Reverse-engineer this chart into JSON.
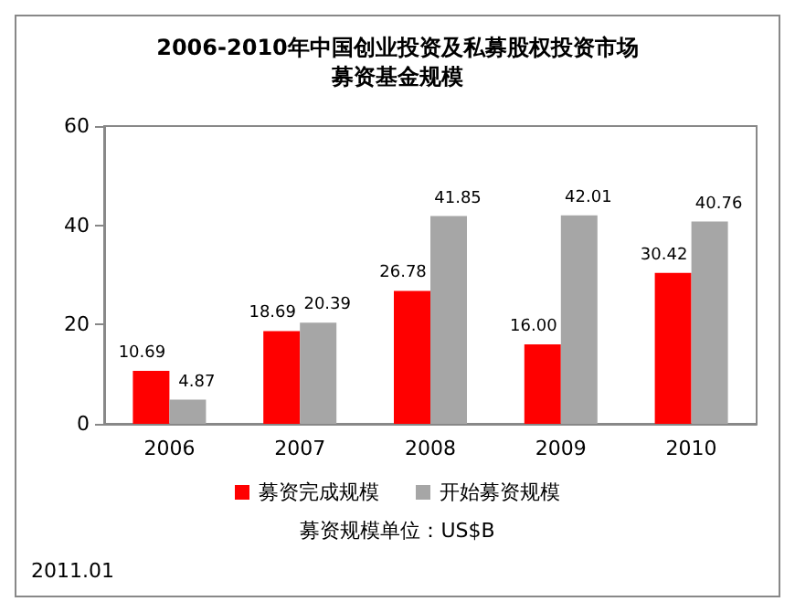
{
  "chart_data": {
    "type": "bar",
    "title": "2006-2010年中国创业投资及私募股权投资市场",
    "subtitle": "募资基金规模",
    "categories": [
      "2006",
      "2007",
      "2008",
      "2009",
      "2010"
    ],
    "series": [
      {
        "name": "募资完成规模",
        "color": "#ff0000",
        "values": [
          10.69,
          18.69,
          26.78,
          16.0,
          30.42
        ],
        "value_labels": [
          "10.69",
          "18.69",
          "26.78",
          "16.00",
          "30.42"
        ]
      },
      {
        "name": "开始募资规模",
        "color": "#a6a6a6",
        "values": [
          4.87,
          20.39,
          41.85,
          42.01,
          40.76
        ],
        "value_labels": [
          "4.87",
          "20.39",
          "41.85",
          "42.01",
          "40.76"
        ]
      }
    ],
    "ylim": [
      0,
      60
    ],
    "yticks": [
      0,
      20,
      40,
      60
    ],
    "grid": false,
    "legend": "bottom",
    "annotations": [
      "募资规模单位：US$B",
      "2011.01"
    ]
  }
}
